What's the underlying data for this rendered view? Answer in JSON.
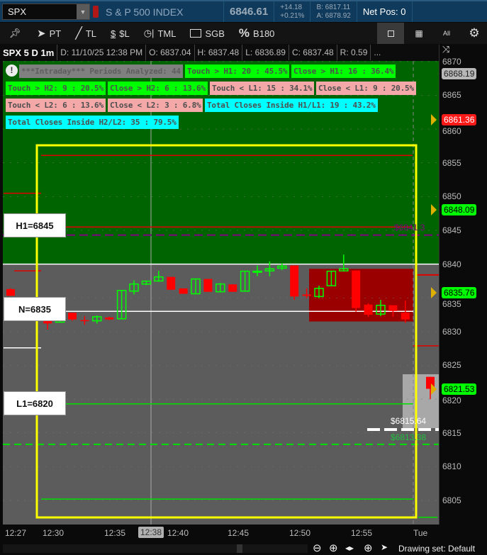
{
  "topbar": {
    "symbol": "SPX",
    "description": "S & P 500 INDEX",
    "last": "6846.61",
    "change": "+14.18",
    "change_pct": "+0.21%",
    "bid": "B: 6817.11",
    "ask": "A: 6878.92",
    "net_pos": "Net Pos: 0"
  },
  "toolbar": {
    "pin": "pin-icon",
    "items": [
      {
        "icon": "cursor-icon",
        "label": "PT"
      },
      {
        "icon": "line-icon",
        "label": "TL"
      },
      {
        "icon": "dollar-line-icon",
        "label": "$L"
      },
      {
        "icon": "clock-line-icon",
        "label": "TML"
      },
      {
        "icon": "rectangle-icon",
        "label": "SGB"
      },
      {
        "icon": "percent-icon",
        "label": "B180"
      }
    ],
    "right": {
      "all": "All"
    }
  },
  "infobar": {
    "title": "SPX 5 D 1m",
    "date": "D: 11/10/25 12:38 PM",
    "open": "O: 6837.04",
    "high": "H: 6837.48",
    "low": "L: 6836.89",
    "close": "C: 6837.48",
    "range": "R: 0.59",
    "more": "..."
  },
  "stats": {
    "header": "***Intraday*** Periods Analyzed: 44",
    "rows": [
      [
        {
          "t": "Touch > H1: 20 : 45.5%",
          "c": "green"
        },
        {
          "t": "Close > H1: 16 : 36.4%",
          "c": "green"
        }
      ],
      [
        {
          "t": "Touch > H2: 9 : 20.5%",
          "c": "green"
        },
        {
          "t": "Close > H2: 6 : 13.6%",
          "c": "green"
        },
        {
          "t": "Touch < L1: 15 : 34.1%",
          "c": "pink"
        },
        {
          "t": "Close < L1: 9 : 20.5%",
          "c": "pink"
        }
      ],
      [
        {
          "t": "Touch < L2: 6 : 13.6%",
          "c": "pink"
        },
        {
          "t": "Close < L2: 3 : 6.8%",
          "c": "pink"
        },
        {
          "t": "Total Closes Inside H1/L1: 19 : 43.2%",
          "c": "cyan"
        }
      ],
      [
        {
          "t": "Total Closes Inside H2/L2: 35 : 79.5%",
          "c": "cyan"
        }
      ]
    ]
  },
  "colors": {
    "green": "#00ff00",
    "pink": "#f4a8a8",
    "cyan": "#00ffff",
    "zone_high": "#006400",
    "zone_mid": "#5c5c5c",
    "zone_red": "#9a0000",
    "up": "#00ff00",
    "down": "#ff0000",
    "box": "#ffff00"
  },
  "levels": {
    "h1": "H1=6845",
    "n": "N=6835",
    "l1": "L1=6820"
  },
  "chart_data": {
    "type": "candlestick",
    "ylim": [
      6801,
      6870.5
    ],
    "yticks": [
      6870,
      6865,
      6860,
      6855,
      6850,
      6845,
      6840,
      6835,
      6830,
      6825,
      6820,
      6815,
      6810,
      6805
    ],
    "xticks": [
      "12:27",
      "12:30",
      "12:35",
      "12:40",
      "12:45",
      "12:50",
      "12:55",
      "Tue"
    ],
    "crosshair_time": "12:38",
    "candles": [
      {
        "t": "12:27",
        "o": 6836.3,
        "h": 6836.4,
        "l": 6835.3,
        "c": 6835.3
      },
      {
        "t": "12:30",
        "o": 6831.9,
        "h": 6831.9,
        "l": 6830.3,
        "c": 6831.2
      },
      {
        "t": "12:31",
        "o": 6831.4,
        "h": 6832.6,
        "l": 6831.4,
        "c": 6832.6
      },
      {
        "t": "12:32",
        "o": 6832.8,
        "h": 6832.8,
        "l": 6831.6,
        "c": 6831.8
      },
      {
        "t": "12:33",
        "o": 6831.7,
        "h": 6832.3,
        "l": 6831.0,
        "c": 6831.6
      },
      {
        "t": "12:34",
        "o": 6831.6,
        "h": 6832.4,
        "l": 6831.2,
        "c": 6832.2
      },
      {
        "t": "12:35",
        "o": 6832.1,
        "h": 6832.2,
        "l": 6831.7,
        "c": 6831.8
      },
      {
        "t": "12:36",
        "o": 6831.9,
        "h": 6836.1,
        "l": 6831.9,
        "c": 6836.1
      },
      {
        "t": "12:37",
        "o": 6836.0,
        "h": 6837.6,
        "l": 6835.5,
        "c": 6837.05
      },
      {
        "t": "12:38",
        "o": 6837.04,
        "h": 6837.48,
        "l": 6836.89,
        "c": 6837.48
      },
      {
        "t": "12:39",
        "o": 6837.5,
        "h": 6839.0,
        "l": 6837.4,
        "c": 6838.1
      },
      {
        "t": "12:40",
        "o": 6838.1,
        "h": 6838.1,
        "l": 6836.2,
        "c": 6836.2
      },
      {
        "t": "12:41",
        "o": 6836.4,
        "h": 6836.4,
        "l": 6835.6,
        "c": 6835.6
      },
      {
        "t": "12:42",
        "o": 6835.6,
        "h": 6837.8,
        "l": 6835.6,
        "c": 6837.8
      },
      {
        "t": "12:43",
        "o": 6837.8,
        "h": 6837.8,
        "l": 6835.9,
        "c": 6835.9
      },
      {
        "t": "12:44",
        "o": 6835.9,
        "h": 6837.2,
        "l": 6835.8,
        "c": 6837.05
      },
      {
        "t": "12:45",
        "o": 6837.0,
        "h": 6837.0,
        "l": 6835.9,
        "c": 6835.9
      },
      {
        "t": "12:46",
        "o": 6836.0,
        "h": 6838.95,
        "l": 6836.0,
        "c": 6838.95
      },
      {
        "t": "12:47",
        "o": 6838.9,
        "h": 6839.8,
        "l": 6838.2,
        "c": 6838.95
      },
      {
        "t": "12:48",
        "o": 6839.0,
        "h": 6840.4,
        "l": 6838.2,
        "c": 6839.3
      },
      {
        "t": "12:49",
        "o": 6839.4,
        "h": 6840.1,
        "l": 6839.1,
        "c": 6839.7
      },
      {
        "t": "12:50",
        "o": 6839.8,
        "h": 6839.8,
        "l": 6834.7,
        "c": 6835.2
      },
      {
        "t": "12:51",
        "o": 6835.5,
        "h": 6836.4,
        "l": 6834.95,
        "c": 6835.3
      },
      {
        "t": "12:52",
        "o": 6835.2,
        "h": 6836.8,
        "l": 6834.95,
        "c": 6836.4
      },
      {
        "t": "12:53",
        "o": 6836.8,
        "h": 6838.95,
        "l": 6836.8,
        "c": 6838.95
      },
      {
        "t": "12:54",
        "o": 6839.0,
        "h": 6841.4,
        "l": 6839.0,
        "c": 6839.3
      },
      {
        "t": "12:55",
        "o": 6839.05,
        "h": 6839.05,
        "l": 6832.95,
        "c": 6833.5
      },
      {
        "t": "12:56",
        "o": 6834.0,
        "h": 6834.2,
        "l": 6832.2,
        "c": 6832.5
      },
      {
        "t": "12:57",
        "o": 6832.6,
        "h": 6834.7,
        "l": 6832.3,
        "c": 6833.9
      },
      {
        "t": "12:58",
        "o": 6833.9,
        "h": 6833.9,
        "l": 6832.2,
        "c": 6833.05
      },
      {
        "t": "12:59",
        "o": 6832.8,
        "h": 6834.6,
        "l": 6831.3,
        "c": 6831.8
      },
      {
        "t": "Tue",
        "o": 6823.3,
        "h": 6823.3,
        "l": 6820.0,
        "c": 6821.53
      }
    ],
    "zones": {
      "high_above": 6840,
      "red_box": [
        6831.5,
        6839.3
      ]
    },
    "price_tags": [
      {
        "v": "6868.19",
        "bg": "#b8b8b8",
        "fg": "#222",
        "arrow": false
      },
      {
        "v": "6861.36",
        "bg": "#ff1a1a",
        "fg": "#fff",
        "arrow": true
      },
      {
        "v": "6848.09",
        "bg": "#00ff00",
        "fg": "#000",
        "arrow": true
      },
      {
        "v": "6835.76",
        "bg": "#00ff00",
        "fg": "#000",
        "arrow": true
      },
      {
        "v": "6821.53",
        "bg": "#00ff00",
        "fg": "#000",
        "arrow": true
      }
    ],
    "annotations": {
      "purple": "$6841.3",
      "white": "$6815.64",
      "green": "$6813.38"
    }
  },
  "bottom": {
    "drawing_set": "Drawing set: Default"
  }
}
